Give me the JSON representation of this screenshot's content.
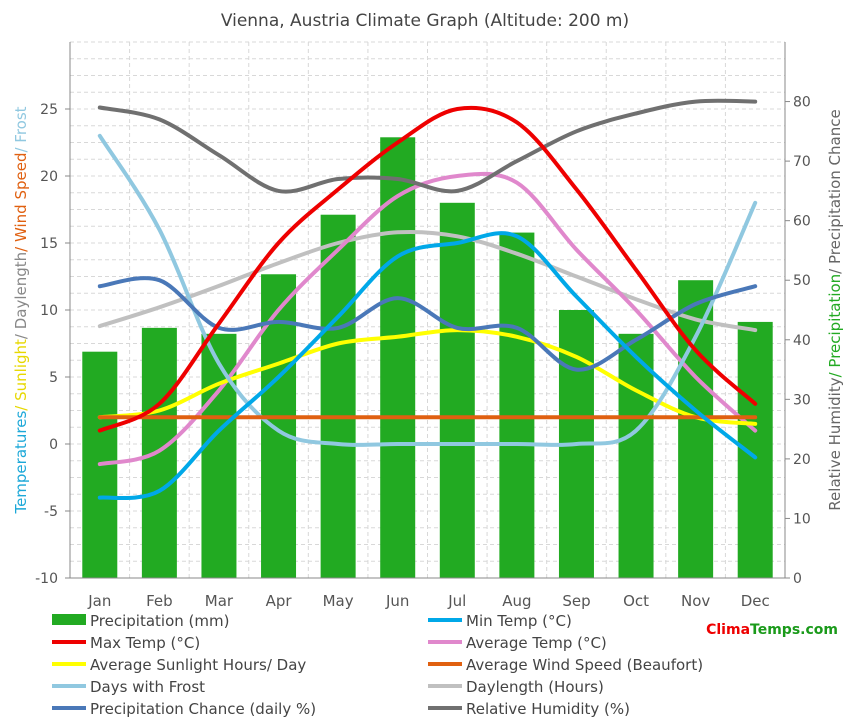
{
  "chart_data": {
    "type": "bar+line",
    "title": "Vienna, Austria Climate Graph (Altitude: 200 m)",
    "categories": [
      "Jan",
      "Feb",
      "Mar",
      "Apr",
      "May",
      "Jun",
      "Jul",
      "Aug",
      "Sep",
      "Oct",
      "Nov",
      "Dec"
    ],
    "left_axis": {
      "label_parts": [
        {
          "text": "Temperatures",
          "color": "#1ca8d8"
        },
        {
          "text": "/ Sunlight",
          "color": "#e7d800"
        },
        {
          "text": "/ Daylength",
          "color": "#888888"
        },
        {
          "text": "/ Wind Speed",
          "color": "#e06010"
        },
        {
          "text": "/ Frost",
          "color": "#90c8e0"
        }
      ],
      "ylim": [
        -10,
        30
      ],
      "ticks": [
        "-10",
        "-5",
        "0",
        "5",
        "10",
        "15",
        "20",
        "25"
      ]
    },
    "right_axis": {
      "label_parts": [
        {
          "text": "Relative Humidity",
          "color": "#666666"
        },
        {
          "text": "/ Precipitation",
          "color": "#22aa22"
        },
        {
          "text": "/ Precipitation Chance",
          "color": "#666666"
        }
      ],
      "ylim": [
        0,
        90
      ],
      "ticks": [
        "0",
        "10",
        "20",
        "30",
        "40",
        "50",
        "60",
        "70",
        "80"
      ]
    },
    "grid": true,
    "bars": {
      "name": "Precipitation (mm)",
      "color": "#22aa22",
      "axis": "right",
      "values": [
        38,
        42,
        41,
        51,
        61,
        74,
        63,
        58,
        45,
        41,
        50,
        43
      ]
    },
    "series": [
      {
        "name": "Min Temp (°C)",
        "color": "#00a8e8",
        "axis": "left",
        "values": [
          -4,
          -3.5,
          1,
          5,
          9.5,
          14,
          15,
          15.5,
          11,
          6.5,
          2.5,
          -1
        ]
      },
      {
        "name": "Max Temp (°C)",
        "color": "#ee0000",
        "axis": "left",
        "values": [
          1,
          3,
          9,
          15,
          19,
          22.5,
          25,
          24,
          19,
          13,
          7,
          3
        ]
      },
      {
        "name": "Average Temp (°C)",
        "color": "#e088cc",
        "axis": "left",
        "values": [
          -1.5,
          -0.5,
          4,
          10,
          14.5,
          18.5,
          20,
          19.5,
          14.5,
          10,
          5,
          1
        ]
      },
      {
        "name": "Average Sunlight Hours/ Day",
        "color": "#ffff00",
        "axis": "left",
        "values": [
          2,
          2.5,
          4.5,
          6,
          7.5,
          8,
          8.5,
          8,
          6.5,
          4,
          2,
          1.5
        ]
      },
      {
        "name": "Average Wind Speed (Beaufort)",
        "color": "#e06010",
        "axis": "left",
        "values": [
          2,
          2,
          2,
          2,
          2,
          2,
          2,
          2,
          2,
          2,
          2,
          2
        ]
      },
      {
        "name": "Days with Frost",
        "color": "#90c8e0",
        "axis": "left",
        "values": [
          23,
          16,
          6,
          1,
          0,
          0,
          0,
          0,
          0,
          1,
          8,
          18
        ]
      },
      {
        "name": "Daylength (Hours)",
        "color": "#c0c0c0",
        "axis": "left",
        "values": [
          8.8,
          10.2,
          11.8,
          13.5,
          15,
          15.8,
          15.5,
          14.2,
          12.5,
          10.8,
          9.3,
          8.5
        ]
      },
      {
        "name": "Precipitation Chance (daily %)",
        "color": "#4a78b8",
        "axis": "right",
        "values": [
          49,
          50,
          42,
          43,
          42,
          47,
          42,
          42,
          35,
          40,
          46,
          49
        ]
      },
      {
        "name": "Relative Humidity (%)",
        "color": "#707070",
        "axis": "right",
        "values": [
          79,
          77,
          71,
          65,
          67,
          67,
          65,
          70,
          75,
          78,
          80,
          80
        ]
      }
    ]
  },
  "legend": {
    "left": [
      "Precipitation (mm)",
      "Max Temp (°C)",
      "Average Sunlight Hours/ Day",
      "Days with Frost",
      "Precipitation Chance (daily %)"
    ],
    "right": [
      "Min Temp (°C)",
      "Average Temp (°C)",
      "Average Wind Speed (Beaufort)",
      "Daylength (Hours)",
      "Relative Humidity (%)"
    ]
  },
  "brand": {
    "part1": "Clima",
    "part2": "Temps",
    "part3": ".com",
    "color1": "#ee0000",
    "color2": "#1a9a1a"
  }
}
